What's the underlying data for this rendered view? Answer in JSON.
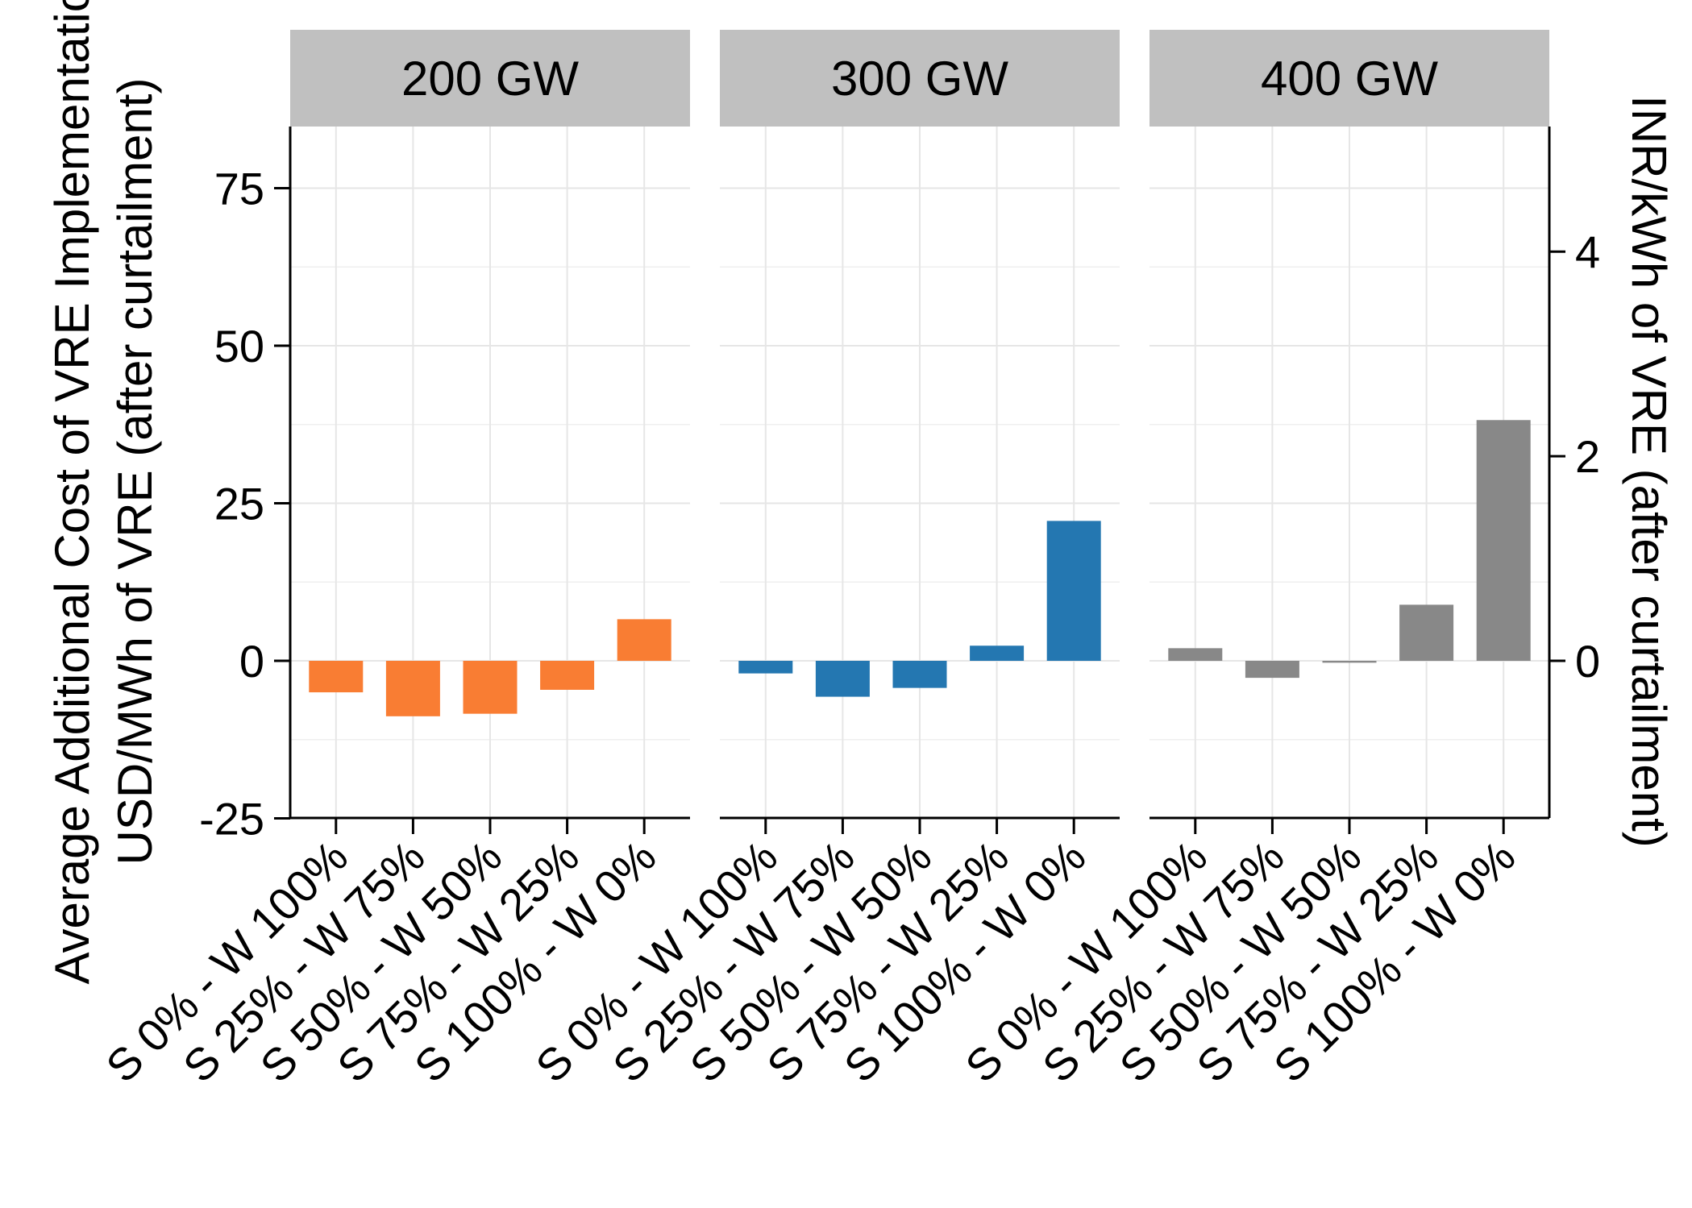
{
  "chart_data": {
    "type": "bar",
    "panels": [
      "200 GW",
      "300 GW",
      "400 GW"
    ],
    "categories": [
      "S 0% - W 100%",
      "S 25% - W 75%",
      "S 50% - W 50%",
      "S 75% - W 25%",
      "S 100% - W 0%"
    ],
    "series": [
      {
        "panel": "200 GW",
        "color": "#F97D33",
        "values": [
          -5.0,
          -8.8,
          -8.4,
          -4.6,
          6.6
        ]
      },
      {
        "panel": "300 GW",
        "color": "#2477B1",
        "values": [
          -2.0,
          -5.7,
          -4.3,
          2.4,
          22.2
        ]
      },
      {
        "panel": "400 GW",
        "color": "#888888",
        "values": [
          2.0,
          -2.7,
          -0.3,
          8.9,
          38.2
        ]
      }
    ],
    "ylabel_line1": "Average Additional Cost of VRE Implementation",
    "ylabel_line2": "USD/MWh of VRE (after curtailment)",
    "y2label": "INR/kWh of VRE (after curtailment)",
    "ylim": [
      -25,
      85
    ],
    "yticks": [
      -25,
      0,
      25,
      50,
      75
    ],
    "y2ticks": [
      0,
      2,
      4
    ],
    "y2_per_y": 0.0616,
    "grid": true,
    "legend": "none"
  }
}
